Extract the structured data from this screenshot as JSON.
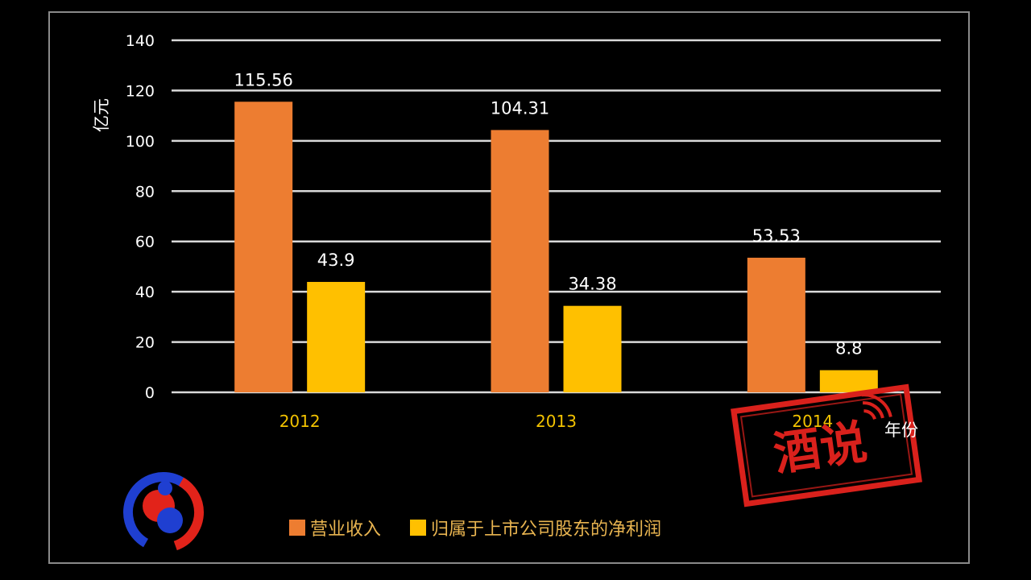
{
  "colors": {
    "background": "#000000",
    "gridline": "#d9d9d9",
    "revenue": "#ed7d31",
    "net_profit": "#ffc000",
    "x_tick": "#f2c200",
    "stamp": "#d9211c"
  },
  "chart_data": {
    "type": "bar",
    "categories": [
      "2012",
      "2013",
      "2014"
    ],
    "series": [
      {
        "name": "营业收入",
        "values": [
          115.56,
          104.31,
          53.53
        ]
      },
      {
        "name": "归属于上市公司股东的净利润",
        "values": [
          43.9,
          34.38,
          8.8
        ]
      }
    ],
    "data_labels": [
      [
        "115.56",
        "104.31",
        "53.53"
      ],
      [
        "43.9",
        "34.38",
        "8.8"
      ]
    ],
    "y_ticks": [
      "0",
      "20",
      "40",
      "60",
      "80",
      "100",
      "120",
      "140"
    ],
    "ylim": [
      0,
      140
    ],
    "ylabel": "亿元",
    "xlabel": "年份",
    "grid": true,
    "legend_position": "bottom"
  },
  "watermark": {
    "stamp_text": "酒说",
    "logo": "circular-red-blue-logo"
  }
}
